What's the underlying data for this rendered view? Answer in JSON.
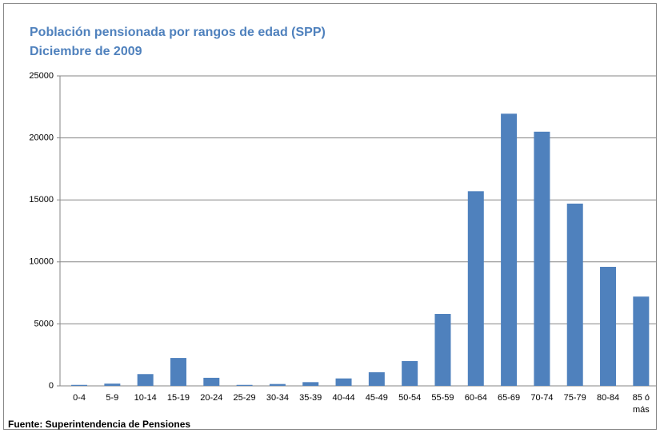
{
  "chart_data": {
    "type": "bar",
    "title": "Población pensionada por rangos de edad (SPP)",
    "subtitle": "Diciembre de 2009",
    "source": "Fuente: Superintendencia de Pensiones",
    "categories": [
      "0-4",
      "5-9",
      "10-14",
      "15-19",
      "20-24",
      "25-29",
      "30-34",
      "35-39",
      "40-44",
      "45-49",
      "50-54",
      "55-59",
      "60-64",
      "65-69",
      "70-74",
      "75-79",
      "80-84",
      "85 ó más"
    ],
    "values": [
      80,
      180,
      950,
      2250,
      650,
      80,
      150,
      300,
      600,
      1100,
      2000,
      5800,
      15700,
      21950,
      20500,
      14700,
      9600,
      7200
    ],
    "color": "#4f81bd",
    "ylim": [
      0,
      25000
    ],
    "yticks": [
      0,
      5000,
      10000,
      15000,
      20000,
      25000
    ],
    "grid": true
  }
}
